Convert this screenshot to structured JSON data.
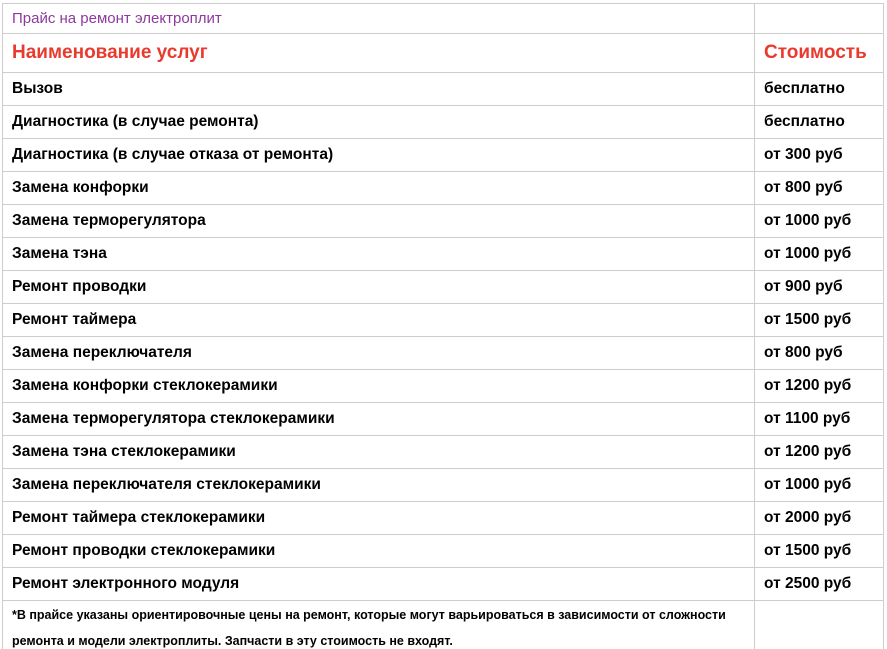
{
  "title": "Прайс на ремонт электроплит",
  "table": {
    "headers": {
      "service": "Наименование услуг",
      "price": "Стоимость"
    },
    "rows": [
      {
        "service": "Вызов",
        "price": "бесплатно"
      },
      {
        "service": "Диагностика (в случае ремонта)",
        "price": "бесплатно"
      },
      {
        "service": "Диагностика (в случае отказа от ремонта)",
        "price": "от 300 руб"
      },
      {
        "service": "Замена конфорки",
        "price": "от 800 руб"
      },
      {
        "service": "Замена терморегулятора",
        "price": "от 1000 руб"
      },
      {
        "service": "Замена тэна",
        "price": "от 1000 руб"
      },
      {
        "service": "Ремонт проводки",
        "price": "от 900 руб"
      },
      {
        "service": "Ремонт таймера",
        "price": "от 1500 руб"
      },
      {
        "service": "Замена переключателя",
        "price": "от 800 руб"
      },
      {
        "service": "Замена конфорки стеклокерамики",
        "price": "от 1200 руб"
      },
      {
        "service": "Замена терморегулятора стеклокерамики",
        "price": "от 1100 руб"
      },
      {
        "service": "Замена тэна стеклокерамики",
        "price": "от 1200 руб"
      },
      {
        "service": "Замена переключателя стеклокерамики",
        "price": "от 1000 руб"
      },
      {
        "service": "Ремонт таймера стеклокерамики",
        "price": "от 2000 руб"
      },
      {
        "service": "Ремонт проводки стеклокерамики",
        "price": "от 1500 руб"
      },
      {
        "service": "Ремонт электронного модуля",
        "price": "от 2500 руб"
      }
    ],
    "footnote": "*В прайсе указаны ориентировочные цены на ремонт, которые могут варьироваться в зависимости от сложности ремонта и модели электроплиты. Запчасти в эту стоимость не входят."
  },
  "colors": {
    "title": "#8e3a9d",
    "header": "#e93a2e",
    "border": "#cdcdcd",
    "text": "#000000"
  }
}
